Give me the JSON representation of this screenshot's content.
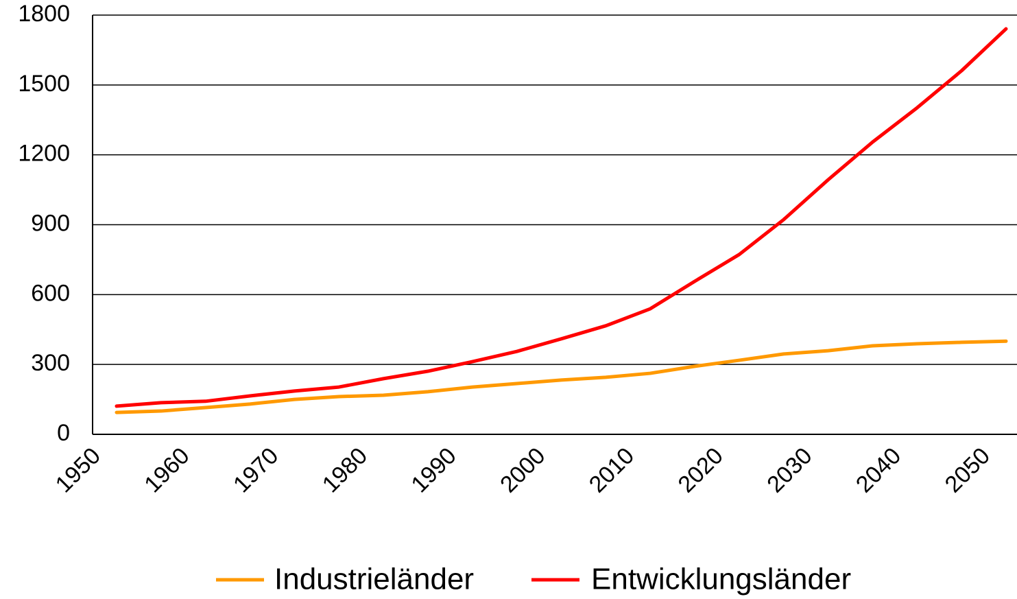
{
  "chart_data": {
    "type": "line",
    "categories": [
      "1950",
      null,
      "1960",
      null,
      "1970",
      null,
      "1980",
      null,
      "1990",
      null,
      "2000",
      null,
      "2010",
      null,
      "2020",
      null,
      "2030",
      null,
      "2040",
      null,
      "2050"
    ],
    "series": [
      {
        "name": "Industrieländer",
        "color": "#ff9900",
        "values": [
          94,
          100,
          115,
          130,
          150,
          162,
          168,
          183,
          203,
          218,
          233,
          245,
          262,
          292,
          318,
          345,
          359,
          380,
          389,
          395,
          400
        ]
      },
      {
        "name": "Entwicklungsländer",
        "color": "#ff0000",
        "values": [
          121,
          136,
          142,
          165,
          186,
          203,
          239,
          271,
          312,
          356,
          410,
          466,
          539,
          657,
          772,
          922,
          1093,
          1255,
          1402,
          1561,
          1741
        ]
      }
    ],
    "ylim": [
      0,
      1800
    ],
    "yticks": [
      0,
      300,
      600,
      900,
      1200,
      1500,
      1800
    ],
    "grid": true,
    "legend": "bottom"
  }
}
